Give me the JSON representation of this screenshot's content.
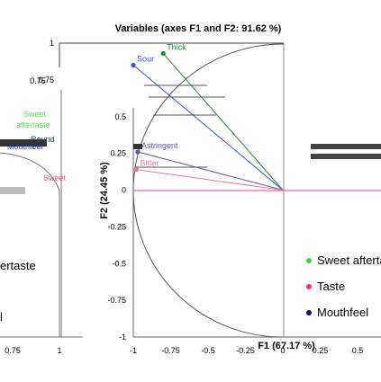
{
  "chart_data": {
    "type": "scatter",
    "title": "Variables (axes F1 and F2: 91.62 %)",
    "xlabel": "F1 (67.17 %)",
    "ylabel": "F2 (24.45 %)",
    "xlim": [
      -1,
      0.5
    ],
    "ylim": [
      -1,
      1
    ],
    "x_ticks": [
      "-1",
      "-0.75",
      "-0.5",
      "-0.25",
      "0",
      "0.25",
      "0.5"
    ],
    "y_ticks": [
      "1",
      "0.75",
      "0.5",
      "0.25",
      "0",
      "-0.25",
      "-0.5",
      "-0.75",
      "-1"
    ],
    "left_panel": {
      "y_ticks": [
        "0.75"
      ],
      "x_ticks": [
        "0.75",
        "1"
      ],
      "labels": [
        "Sweet",
        "aftertaste",
        "Mouthfeel",
        "Round",
        "Sweet"
      ],
      "legend_fragments": [
        "ertaste",
        "l"
      ]
    },
    "series": [
      {
        "name": "Sweet aftertaste",
        "color": "#33dd33"
      },
      {
        "name": "Taste",
        "color": "#ee3366"
      },
      {
        "name": "Mouthfeel",
        "color": "#111166"
      }
    ],
    "points": [
      {
        "label": "Thick",
        "x": -0.8,
        "y": 0.93,
        "color": "#228833"
      },
      {
        "label": "Sour",
        "x": -1.0,
        "y": 0.85,
        "color": "#3355cc"
      },
      {
        "label": "Astringent",
        "x": -0.97,
        "y": 0.26,
        "color": "#6655aa"
      },
      {
        "label": "Bitter",
        "x": -0.98,
        "y": 0.14,
        "color": "#ee7799"
      }
    ],
    "grid": false,
    "legend_position": "right"
  }
}
